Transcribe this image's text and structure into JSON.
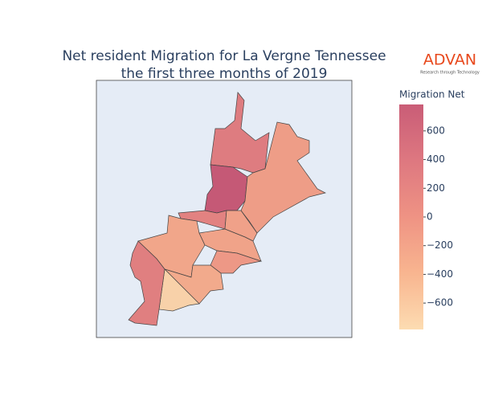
{
  "chart_data": {
    "type": "choropleth",
    "title": [
      "Net resident Migration for La Vergne Tennessee",
      "the first three months of 2019"
    ],
    "colorbar_title": "Migration Net",
    "values": [
      300,
      780,
      -150,
      200,
      -200,
      -250,
      -230,
      -100,
      -300,
      -700,
      250
    ],
    "zlim": [
      -784,
      784
    ],
    "zticks": [
      {
        "value": -600,
        "label": "−600"
      },
      {
        "value": -400,
        "label": "−400"
      },
      {
        "value": -200,
        "label": "−200"
      },
      0,
      200,
      400,
      600
    ],
    "colorscale": [
      "#fcd6a4",
      "#f7a87c",
      "#ec806e",
      "#d8606a",
      "#c0405f"
    ],
    "opacity": 0.85
  },
  "logo": {
    "name": "ADVAN",
    "tagline": "Research through Technology"
  }
}
